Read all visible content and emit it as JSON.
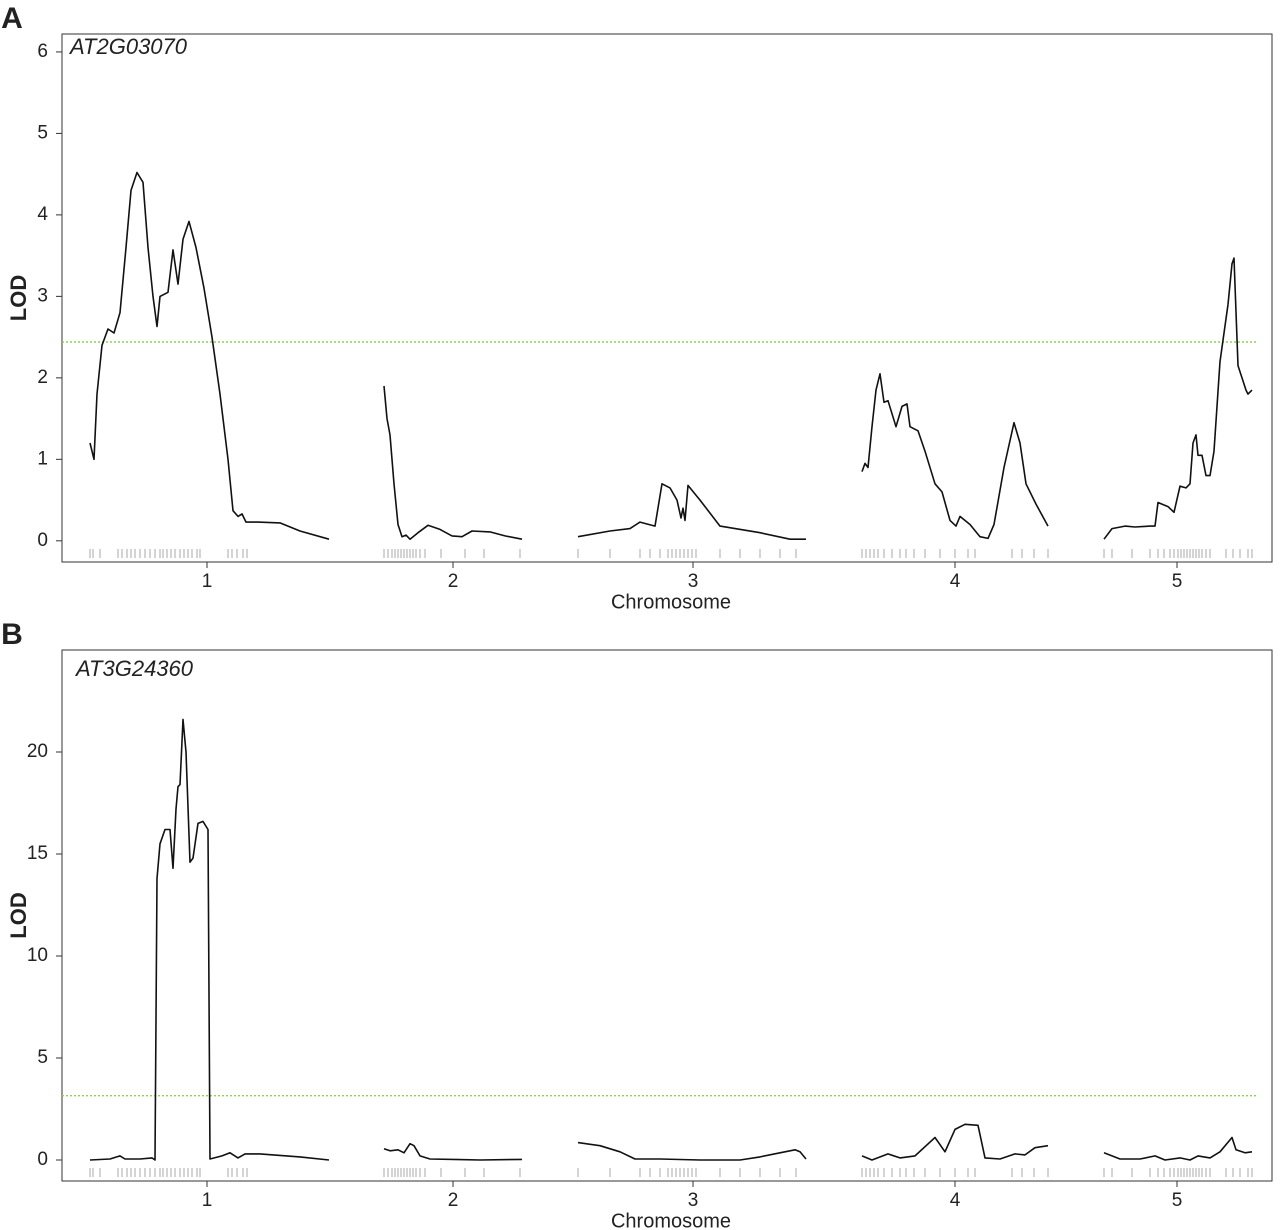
{
  "chart_data": [
    {
      "type": "line",
      "panel_label": "A",
      "title": "AT2G03070",
      "xlabel": "Chromosome",
      "ylabel": "LOD",
      "color": "#111111",
      "threshold": 2.44,
      "threshold_color": "#8fd14f",
      "xlim": [
        0,
        121
      ],
      "ylim": [
        -0.26,
        6.22
      ],
      "yticks": [
        0,
        1,
        2,
        3,
        4,
        5,
        6
      ],
      "xticks": [
        {
          "value": 14.5,
          "label": "1"
        },
        {
          "value": 39.1,
          "label": "2"
        },
        {
          "value": 63.1,
          "label": "3"
        },
        {
          "value": 89.3,
          "label": "4"
        },
        {
          "value": 111.5,
          "label": "5"
        }
      ],
      "x": [
        2.8,
        3.2,
        3.5,
        4.0,
        4.6,
        5.2,
        5.8,
        6.4,
        6.9,
        7.5,
        8.1,
        8.6,
        9.1,
        9.5,
        9.8,
        10.6,
        11.1,
        11.6,
        12.1,
        12.7,
        13.4,
        14.2,
        15.0,
        15.8,
        16.6,
        17.1,
        17.6,
        18.0,
        18.4,
        19.6,
        21.8,
        23.8,
        26.7,
        28,
        32.2,
        32.5,
        32.8,
        33.2,
        33.6,
        34.0,
        34.4,
        34.8,
        35.6,
        36.6,
        37.8,
        39.0,
        40.0,
        41.0,
        42.8,
        44.3,
        46.0,
        48,
        51.6,
        54.8,
        56.8,
        57.8,
        59.3,
        60.0,
        60.8,
        61.5,
        61.9,
        62.1,
        62.3,
        62.6,
        63.8,
        65.8,
        69.8,
        72.8,
        74.4,
        77,
        80.0,
        80.3,
        80.6,
        81.0,
        81.4,
        81.8,
        82.2,
        82.6,
        83.4,
        84.0,
        84.5,
        84.8,
        85.6,
        86.3,
        87.3,
        88.0,
        88.8,
        89.4,
        89.8,
        90.8,
        91.8,
        92.6,
        93.2,
        94.2,
        95.2,
        95.8,
        96.4,
        97.4,
        98.6,
        101,
        104.2,
        105.0,
        106.3,
        107.3,
        108.8,
        109.3,
        109.6,
        110.6,
        111.2,
        111.8,
        112.4,
        112.8,
        113.1,
        113.4,
        113.6,
        114.0,
        114.4,
        114.8,
        115.2,
        115.8,
        116.6,
        117.0,
        117.2,
        117.6,
        118.4,
        118.6,
        119.0
      ],
      "values": [
        1.2,
        1.0,
        1.8,
        2.4,
        2.6,
        2.55,
        2.8,
        3.6,
        4.3,
        4.52,
        4.4,
        3.6,
        3.0,
        2.63,
        3.0,
        3.05,
        3.57,
        3.15,
        3.7,
        3.92,
        3.6,
        3.1,
        2.5,
        1.8,
        1.0,
        0.37,
        0.3,
        0.33,
        0.23,
        0.23,
        0.22,
        0.12,
        0.02,
        null,
        1.9,
        1.5,
        1.3,
        0.7,
        0.2,
        0.05,
        0.07,
        0.02,
        0.1,
        0.19,
        0.14,
        0.06,
        0.05,
        0.12,
        0.11,
        0.06,
        0.02,
        null,
        0.05,
        0.12,
        0.15,
        0.23,
        0.18,
        0.7,
        0.65,
        0.5,
        0.28,
        0.4,
        0.25,
        0.68,
        0.5,
        0.18,
        0.1,
        0.02,
        0.02,
        null,
        0.85,
        0.95,
        0.9,
        1.4,
        1.85,
        2.05,
        1.7,
        1.72,
        1.4,
        1.65,
        1.68,
        1.4,
        1.35,
        1.1,
        0.7,
        0.6,
        0.25,
        0.18,
        0.3,
        0.2,
        0.05,
        0.03,
        0.2,
        0.9,
        1.45,
        1.2,
        0.7,
        0.45,
        0.18,
        null,
        0.02,
        0.15,
        0.18,
        0.17,
        0.18,
        0.18,
        0.47,
        0.42,
        0.35,
        0.67,
        0.65,
        0.7,
        1.2,
        1.3,
        1.05,
        1.05,
        0.8,
        0.8,
        1.1,
        2.2,
        2.9,
        3.4,
        3.47,
        2.15,
        1.85,
        1.8,
        1.85
      ],
      "markers": [
        2.8,
        3.1,
        3.8,
        5.6,
        6.0,
        6.5,
        6.9,
        7.3,
        7.8,
        8.3,
        8.8,
        9.3,
        9.8,
        10.1,
        10.5,
        10.9,
        11.3,
        11.8,
        12.2,
        12.6,
        13.0,
        13.5,
        13.8,
        16.6,
        17.0,
        17.5,
        18.1,
        18.5,
        32.2,
        32.6,
        33.0,
        33.3,
        33.6,
        33.9,
        34.2,
        34.5,
        34.8,
        35.1,
        35.4,
        35.8,
        36.3,
        37.9,
        40.3,
        42.2,
        45.8,
        51.6,
        54.8,
        57.8,
        58.8,
        59.8,
        60.6,
        61.0,
        61.4,
        61.8,
        62.2,
        62.6,
        63.0,
        63.4,
        65.8,
        67.8,
        69.8,
        71.8,
        73.4,
        80.0,
        80.4,
        80.8,
        81.2,
        81.6,
        82.2,
        83.0,
        83.8,
        84.4,
        85.2,
        86.3,
        87.8,
        89.3,
        90.6,
        91.3,
        95.0,
        96.0,
        97.2,
        98.6,
        104.2,
        105.0,
        107.0,
        108.8,
        109.6,
        110.2,
        110.8,
        111.2,
        111.6,
        111.9,
        112.2,
        112.5,
        112.8,
        113.1,
        113.4,
        113.7,
        114.0,
        114.4,
        114.8,
        116.4,
        117.1,
        117.8,
        118.6,
        119.0
      ],
      "marker_color": "#aaaaaa"
    },
    {
      "type": "line",
      "panel_label": "B",
      "title": "AT3G24360",
      "xlabel": "Chromosome",
      "ylabel": "LOD",
      "color": "#111111",
      "threshold": 3.15,
      "threshold_color": "#8fd14f",
      "xlim": [
        0,
        121
      ],
      "ylim": [
        -1.03,
        25
      ],
      "yticks": [
        0,
        5,
        10,
        15,
        20
      ],
      "xticks": [
        {
          "value": 14.5,
          "label": "1"
        },
        {
          "value": 39.1,
          "label": "2"
        },
        {
          "value": 63.1,
          "label": "3"
        },
        {
          "value": 89.3,
          "label": "4"
        },
        {
          "value": 111.5,
          "label": "5"
        }
      ],
      "x": [
        2.8,
        4.8,
        5.8,
        6.3,
        7.8,
        9.0,
        9.3,
        9.5,
        9.8,
        10.3,
        10.8,
        11.1,
        11.4,
        11.6,
        11.8,
        12.1,
        12.4,
        12.8,
        13.1,
        13.6,
        14.1,
        14.6,
        14.8,
        16.0,
        16.8,
        17.6,
        18.3,
        19.8,
        23.8,
        26.7,
        28,
        32.2,
        32.8,
        33.6,
        34.2,
        34.8,
        35.2,
        35.8,
        36.8,
        39.8,
        41.8,
        46.0,
        48,
        51.6,
        53.8,
        55.8,
        57.3,
        59.8,
        63.8,
        67.8,
        69.8,
        71.8,
        73.3,
        73.8,
        74.4,
        77,
        80.0,
        81.0,
        82.6,
        83.8,
        85.3,
        87.3,
        88.3,
        89.3,
        90.3,
        91.6,
        92.3,
        93.8,
        95.3,
        96.3,
        97.3,
        98.6,
        101,
        104.2,
        105.8,
        107.8,
        109.3,
        110.3,
        111.8,
        112.8,
        113.6,
        114.8,
        115.8,
        117.0,
        117.4,
        118.3,
        119.0
      ],
      "values": [
        0.0,
        0.05,
        0.2,
        0.05,
        0.05,
        0.1,
        0.0,
        13.8,
        15.5,
        16.2,
        16.2,
        14.3,
        17.2,
        18.3,
        18.4,
        21.6,
        20.0,
        14.6,
        14.8,
        16.5,
        16.6,
        16.2,
        0.05,
        0.2,
        0.35,
        0.1,
        0.3,
        0.3,
        0.15,
        0.0,
        null,
        0.55,
        0.45,
        0.5,
        0.35,
        0.8,
        0.7,
        0.2,
        0.05,
        0.02,
        0.0,
        0.03,
        null,
        0.85,
        0.7,
        0.4,
        0.05,
        0.05,
        0.0,
        0.0,
        0.15,
        0.35,
        0.5,
        0.4,
        0.05,
        null,
        0.2,
        0.0,
        0.3,
        0.1,
        0.2,
        1.1,
        0.4,
        1.5,
        1.75,
        1.7,
        0.1,
        0.05,
        0.3,
        0.25,
        0.6,
        0.7,
        null,
        0.35,
        0.05,
        0.05,
        0.2,
        0.0,
        0.1,
        0.0,
        0.2,
        0.1,
        0.4,
        1.1,
        0.5,
        0.35,
        0.4
      ],
      "markers": [
        2.8,
        3.1,
        3.8,
        5.6,
        6.0,
        6.5,
        6.9,
        7.3,
        7.8,
        8.3,
        8.8,
        9.3,
        9.8,
        10.1,
        10.5,
        10.9,
        11.3,
        11.8,
        12.2,
        12.6,
        13.0,
        13.5,
        13.8,
        16.6,
        17.0,
        17.5,
        18.1,
        18.5,
        32.2,
        32.6,
        33.0,
        33.3,
        33.6,
        33.9,
        34.2,
        34.5,
        34.8,
        35.1,
        35.4,
        35.8,
        36.3,
        37.9,
        40.3,
        42.2,
        45.8,
        51.6,
        54.8,
        57.8,
        58.8,
        59.8,
        60.6,
        61.0,
        61.4,
        61.8,
        62.2,
        62.6,
        63.0,
        63.4,
        65.8,
        67.8,
        69.8,
        71.8,
        73.4,
        80.0,
        80.4,
        80.8,
        81.2,
        81.6,
        82.2,
        83.0,
        83.8,
        84.4,
        85.2,
        86.3,
        87.8,
        89.3,
        90.6,
        91.3,
        95.0,
        96.0,
        97.2,
        98.6,
        104.2,
        105.0,
        107.0,
        108.8,
        109.6,
        110.2,
        110.8,
        111.2,
        111.6,
        111.9,
        112.2,
        112.5,
        112.8,
        113.1,
        113.4,
        113.7,
        114.0,
        114.4,
        114.8,
        116.4,
        117.1,
        117.8,
        118.6,
        119.0
      ],
      "marker_color": "#aaaaaa"
    }
  ]
}
